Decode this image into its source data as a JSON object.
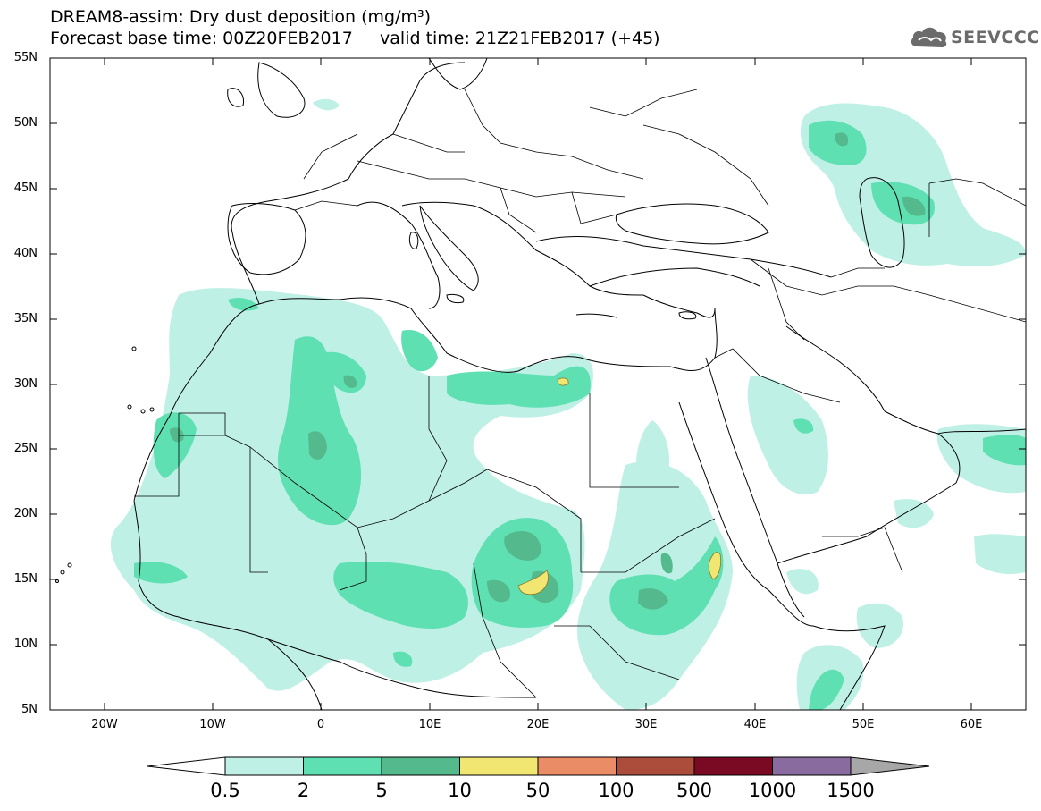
{
  "title_line1": "DREAM8-assim: Dry dust deposition (mg/m³)",
  "title_line2": "Forecast base time: 00Z20FEB2017     valid time: 21Z21FEB2017 (+45)",
  "logo": {
    "text": "SEEVCCC",
    "icon": "cloud-logo-icon"
  },
  "map": {
    "lon_range": [
      -25,
      65
    ],
    "lat_range": [
      5,
      55
    ],
    "lat_labels": [
      "55N",
      "50N",
      "45N",
      "40N",
      "35N",
      "30N",
      "25N",
      "20N",
      "15N",
      "10N",
      "5N"
    ],
    "lon_labels": [
      "20W",
      "10W",
      "0",
      "10E",
      "20E",
      "30E",
      "40E",
      "50E",
      "60E"
    ]
  },
  "colorbar": {
    "labels": [
      "0.5",
      "2",
      "5",
      "10",
      "50",
      "100",
      "500",
      "1000",
      "1500"
    ],
    "colors": [
      "#bff0e6",
      "#5fe0b3",
      "#54b98c",
      "#f2e673",
      "#ea8d66",
      "#ac4c3b",
      "#7a0a23",
      "#8a6ba0"
    ],
    "under_color": "#ffffff",
    "over_color": "#a7a7a7"
  }
}
